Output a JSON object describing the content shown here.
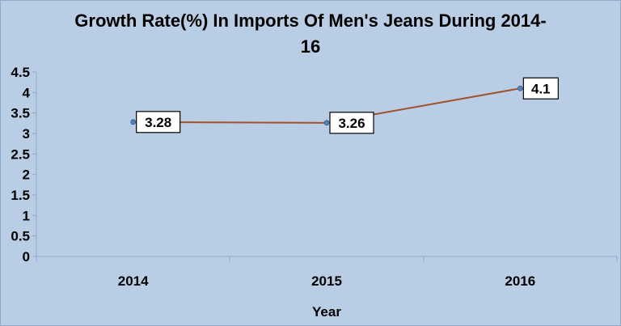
{
  "chart_data": {
    "type": "line",
    "title_line1": "Growth Rate(%) In Imports Of Men's Jeans During 2014-",
    "title_line2": "16",
    "xlabel": "Year",
    "ylabel": "",
    "categories": [
      "2014",
      "2015",
      "2016"
    ],
    "series": [
      {
        "values": [
          3.28,
          3.26,
          4.1
        ],
        "labels": [
          "3.28",
          "3.26",
          "4.1"
        ]
      }
    ],
    "ylim": [
      0,
      4.5
    ],
    "yticks": [
      "0",
      "0.5",
      "1",
      "1.5",
      "2",
      "2.5",
      "3",
      "3.5",
      "4",
      "4.5"
    ],
    "grid": false,
    "legend": "none",
    "colors": {
      "line": "#a0522d",
      "marker": "#4f81bd",
      "background": "#b9cde5",
      "axis": "#8eaacb"
    }
  }
}
